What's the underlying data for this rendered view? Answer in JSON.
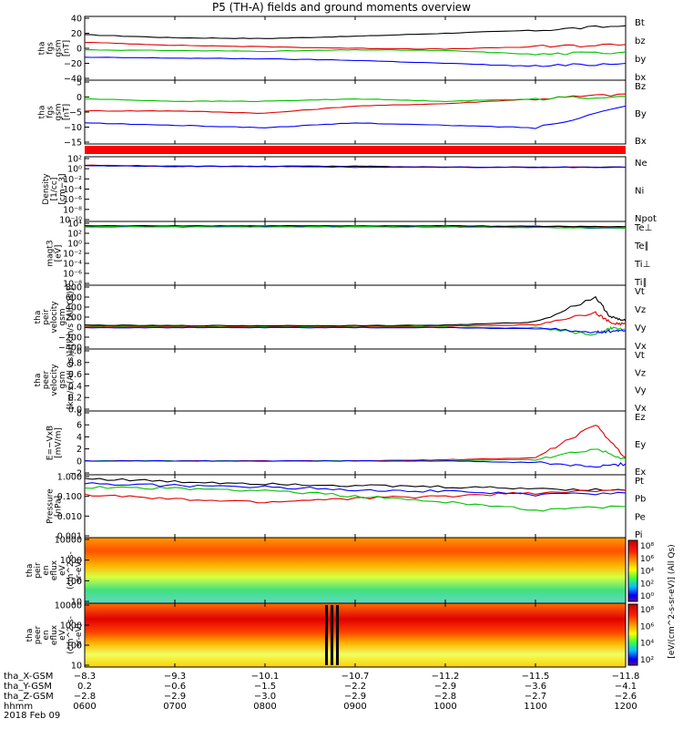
{
  "title": "P5 (TH-A) fields and ground moments overview",
  "colors": {
    "black": "#000000",
    "red": "#e00000",
    "green": "#00c000",
    "blue": "#0000ff"
  },
  "panels": [
    {
      "ylabel": [
        "tha",
        "fgs",
        "gsm",
        "[nT]"
      ],
      "ticks": [
        "40",
        "20",
        "0",
        "−20",
        "−40"
      ],
      "legend": [
        {
          "text": "Bt",
          "color": "#000000"
        },
        {
          "text": "bz",
          "color": "#e00000"
        },
        {
          "text": "by",
          "color": "#00c000"
        },
        {
          "text": "bx",
          "color": "#0000ff"
        }
      ]
    },
    {
      "ylabel": [
        "tha",
        "fgs",
        "gsm",
        "[nT]"
      ],
      "ticks": [
        "5",
        "0",
        "−5",
        "−10",
        "−15"
      ],
      "legend": [
        {
          "text": "Bz",
          "color": "#e00000"
        },
        {
          "text": "By",
          "color": "#00c000"
        },
        {
          "text": "Bx",
          "color": "#0000ff"
        }
      ]
    },
    {
      "ylabel": [
        "Density",
        "[1/cc]",
        "[cm−3]"
      ],
      "ticks": [
        "10²",
        "10⁰",
        "10⁻²",
        "10⁻⁴",
        "10⁻⁶",
        "10⁻⁸",
        "10⁻¹⁰"
      ],
      "legend": [
        {
          "text": "Ne",
          "color": "#e00000"
        },
        {
          "text": "Ni",
          "color": "#000000"
        },
        {
          "text": "Npot",
          "color": "#0000ff"
        }
      ]
    },
    {
      "ylabel": [
        "magt3",
        "[eV]"
      ],
      "ticks": [
        "10⁴",
        "10²",
        "10⁰",
        "10⁻²",
        "10⁻⁴",
        "10⁻⁶",
        "10⁻⁸"
      ],
      "legend": [
        {
          "text": "Te⊥",
          "color": "#e00000"
        },
        {
          "text": "Te∥",
          "color": "#000000"
        },
        {
          "text": "Ti⊥",
          "color": "#0000ff"
        },
        {
          "text": "Ti∥",
          "color": "#00c000"
        }
      ]
    },
    {
      "ylabel": [
        "tha",
        "peir",
        "velocity",
        "gsm",
        "[km/s (All Qs)]"
      ],
      "ticks": [
        "800",
        "600",
        "400",
        "200",
        "0",
        "−200",
        "−400"
      ],
      "legend": [
        {
          "text": "Vt",
          "color": "#000000"
        },
        {
          "text": "Vz",
          "color": "#e00000"
        },
        {
          "text": "Vy",
          "color": "#00c000"
        },
        {
          "text": "Vx",
          "color": "#0000ff"
        }
      ]
    },
    {
      "ylabel": [
        "tha",
        "peer",
        "velocity",
        "gsm",
        "[km/s (All Qs)]"
      ],
      "ticks": [
        "1.0",
        "0.8",
        "0.6",
        "0.4",
        "0.2",
        "0.0"
      ],
      "legend": [
        {
          "text": "Vt",
          "color": "#000000"
        },
        {
          "text": "Vz",
          "color": "#e00000"
        },
        {
          "text": "Vy",
          "color": "#00c000"
        },
        {
          "text": "Vx",
          "color": "#0000ff"
        }
      ]
    },
    {
      "ylabel": [
        "E=−VxB",
        "[mV/m]"
      ],
      "ticks": [
        "8",
        "6",
        "4",
        "2",
        "0",
        "−2"
      ],
      "legend": [
        {
          "text": "Ez",
          "color": "#e00000"
        },
        {
          "text": "Ey",
          "color": "#00c000"
        },
        {
          "text": "Ex",
          "color": "#0000ff"
        }
      ]
    },
    {
      "ylabel": [
        "Pressure",
        "[nPa]"
      ],
      "ticks": [
        "1.000",
        "0.100",
        "0.010",
        "0.001"
      ],
      "legend": [
        {
          "text": "Pt",
          "color": "#000000"
        },
        {
          "text": "Pb",
          "color": "#e00000"
        },
        {
          "text": "Pe",
          "color": "#00c000"
        },
        {
          "text": "Pi",
          "color": "#0000ff"
        }
      ]
    },
    {
      "ylabel": [
        "tha",
        "peir",
        "en",
        "eflux",
        "eV",
        "(cm^2-s-",
        "sr-eV)"
      ],
      "ticks": [
        "10000",
        "1000",
        "100",
        "10"
      ],
      "legend": []
    },
    {
      "ylabel": [
        "tha",
        "peer",
        "en",
        "eflux",
        "eV",
        "(cm^2-s-",
        "sr-eV)"
      ],
      "ticks": [
        "10000",
        "1000",
        "100",
        "10"
      ],
      "legend": []
    }
  ],
  "colorbar": {
    "label": "[eV/(cm^2-s-sr-eV)] (All Qs)",
    "ticks_top": [
      "10⁸",
      "10⁶",
      "10⁴",
      "10²",
      "10⁰"
    ],
    "ticks_bottom": [
      "10⁸",
      "10⁶",
      "10⁴",
      "10²"
    ]
  },
  "x_axis": {
    "rows": [
      {
        "label": "tha_X-GSM",
        "values": [
          "−8.3",
          "−9.3",
          "−10.1",
          "−10.7",
          "−11.2",
          "−11.5",
          "−11.8"
        ]
      },
      {
        "label": "tha_Y-GSM",
        "values": [
          "0.2",
          "−0.6",
          "−1.5",
          "−2.2",
          "−2.9",
          "−3.6",
          "−4.1"
        ]
      },
      {
        "label": "tha_Z-GSM",
        "values": [
          "−2.8",
          "−2.9",
          "−3.0",
          "−2.9",
          "−2.8",
          "−2.7",
          "−2.6"
        ]
      },
      {
        "label": "hhmm",
        "values": [
          "0600",
          "0700",
          "0800",
          "0900",
          "1000",
          "1100",
          "1200"
        ]
      }
    ],
    "date": "2018 Feb 09"
  },
  "chart_data": [
    {
      "type": "line",
      "title": "",
      "ylabel": "tha fgs gsm [nT]",
      "ylim": [
        -40,
        40
      ],
      "x": [
        "0600",
        "0700",
        "0800",
        "0900",
        "1000",
        "1100",
        "1200"
      ],
      "series": [
        {
          "name": "Bt",
          "values": [
            18,
            14,
            13,
            16,
            20,
            24,
            30
          ]
        },
        {
          "name": "bz",
          "values": [
            8,
            4,
            2,
            0,
            -1,
            2,
            5
          ]
        },
        {
          "name": "by",
          "values": [
            -2,
            -3,
            -4,
            -2,
            -3,
            -8,
            -5
          ]
        },
        {
          "name": "bx",
          "values": [
            -12,
            -13,
            -14,
            -16,
            -20,
            -24,
            -20
          ]
        }
      ]
    },
    {
      "type": "line",
      "title": "",
      "ylabel": "tha fgs gsm [nT]",
      "ylim": [
        -18,
        7
      ],
      "x": [
        "0600",
        "0700",
        "0800",
        "0900",
        "1000",
        "1100",
        "1200"
      ],
      "series": [
        {
          "name": "Bz",
          "values": [
            -5,
            -5,
            -6,
            -3,
            -2,
            0,
            2
          ]
        },
        {
          "name": "By",
          "values": [
            0,
            -1,
            -1,
            0,
            -1,
            0,
            1
          ]
        },
        {
          "name": "Bx",
          "values": [
            -10,
            -11,
            -12,
            -10,
            -11,
            -12,
            -3
          ]
        }
      ]
    },
    {
      "type": "line",
      "title": "",
      "ylabel": "Density [1/cc]",
      "ylim": [
        1e-10,
        100
      ],
      "yscale": "log",
      "x": [
        "0600",
        "0700",
        "0800",
        "0900",
        "1000",
        "1100",
        "1200"
      ],
      "series": [
        {
          "name": "Ne",
          "values": [
            5,
            3,
            3,
            3,
            2,
            2,
            2
          ]
        },
        {
          "name": "Ni",
          "values": [
            4,
            3,
            3,
            3,
            2,
            2,
            2
          ]
        },
        {
          "name": "Npot",
          "values": [
            4,
            3,
            3,
            2,
            2,
            2,
            2
          ]
        }
      ]
    },
    {
      "type": "line",
      "title": "",
      "ylabel": "magt3 [eV]",
      "ylim": [
        1e-08,
        10000
      ],
      "yscale": "log",
      "x": [
        "0600",
        "0700",
        "0800",
        "0900",
        "1000",
        "1100",
        "1200"
      ],
      "series": [
        {
          "name": "Te⊥",
          "values": [
            3000,
            3000,
            3000,
            3000,
            3000,
            2500,
            2000
          ]
        },
        {
          "name": "Te∥",
          "values": [
            3000,
            3000,
            3000,
            3000,
            3000,
            2500,
            2000
          ]
        },
        {
          "name": "Ti⊥",
          "values": [
            2000,
            2000,
            2000,
            2000,
            2000,
            1500,
            1000
          ]
        },
        {
          "name": "Ti∥",
          "values": [
            2000,
            2000,
            2000,
            2000,
            2000,
            1500,
            1000
          ]
        }
      ]
    },
    {
      "type": "line",
      "title": "",
      "ylabel": "tha peir velocity gsm [km/s (All Qs)]",
      "ylim": [
        -400,
        800
      ],
      "x": [
        "0600",
        "0700",
        "0800",
        "0900",
        "1000",
        "1100",
        "1140",
        "1150",
        "1200"
      ],
      "series": [
        {
          "name": "Vt",
          "values": [
            40,
            30,
            30,
            30,
            40,
            100,
            600,
            200,
            120
          ]
        },
        {
          "name": "Vz",
          "values": [
            20,
            10,
            10,
            10,
            20,
            50,
            300,
            80,
            60
          ]
        },
        {
          "name": "Vy",
          "values": [
            0,
            0,
            0,
            0,
            0,
            -20,
            -150,
            -30,
            -40
          ]
        },
        {
          "name": "Vx",
          "values": [
            -10,
            -10,
            -10,
            -10,
            -10,
            -30,
            -100,
            -80,
            -60
          ]
        }
      ]
    },
    {
      "type": "line",
      "title": "",
      "ylabel": "tha peer velocity gsm [km/s (All Qs)]",
      "ylim": [
        0,
        1
      ],
      "series": []
    },
    {
      "type": "line",
      "title": "",
      "ylabel": "E=−VxB [mV/m]",
      "ylim": [
        -2,
        8
      ],
      "x": [
        "0600",
        "0700",
        "0800",
        "0900",
        "1000",
        "1100",
        "1140",
        "1200"
      ],
      "series": [
        {
          "name": "Ez",
          "values": [
            0,
            0,
            0,
            0,
            0.2,
            0.5,
            6,
            0.5
          ]
        },
        {
          "name": "Ey",
          "values": [
            0,
            0,
            0,
            0,
            0,
            0.3,
            2,
            0.3
          ]
        },
        {
          "name": "Ex",
          "values": [
            0,
            0,
            0,
            0,
            0,
            -0.3,
            -1,
            -0.5
          ]
        }
      ]
    },
    {
      "type": "line",
      "title": "",
      "ylabel": "Pressure [nPa]",
      "ylim": [
        0.001,
        1
      ],
      "yscale": "log",
      "x": [
        "0600",
        "0700",
        "0800",
        "0900",
        "1000",
        "1100",
        "1200"
      ],
      "series": [
        {
          "name": "Pt",
          "values": [
            0.8,
            0.55,
            0.45,
            0.35,
            0.3,
            0.25,
            0.2
          ]
        },
        {
          "name": "Pb",
          "values": [
            0.12,
            0.07,
            0.05,
            0.08,
            0.1,
            0.15,
            0.2
          ]
        },
        {
          "name": "Pe",
          "values": [
            0.3,
            0.25,
            0.2,
            0.1,
            0.05,
            0.02,
            0.03
          ]
        },
        {
          "name": "Pi",
          "values": [
            0.45,
            0.35,
            0.3,
            0.22,
            0.18,
            0.12,
            0.15
          ]
        }
      ]
    },
    {
      "type": "heatmap",
      "title": "",
      "ylabel": "tha peir en eflux eV (cm^2-s-sr-eV)",
      "ylim": [
        10,
        20000
      ],
      "yscale": "log",
      "x": [
        "0600",
        "0700",
        "0800",
        "0900",
        "1000",
        "1100",
        "1200"
      ]
    },
    {
      "type": "heatmap",
      "title": "",
      "ylabel": "tha peer en eflux eV (cm^2-s-sr-eV)",
      "ylim": [
        10,
        20000
      ],
      "yscale": "log",
      "x": [
        "0600",
        "0700",
        "0800",
        "0900",
        "1000",
        "1100",
        "1200"
      ]
    }
  ]
}
